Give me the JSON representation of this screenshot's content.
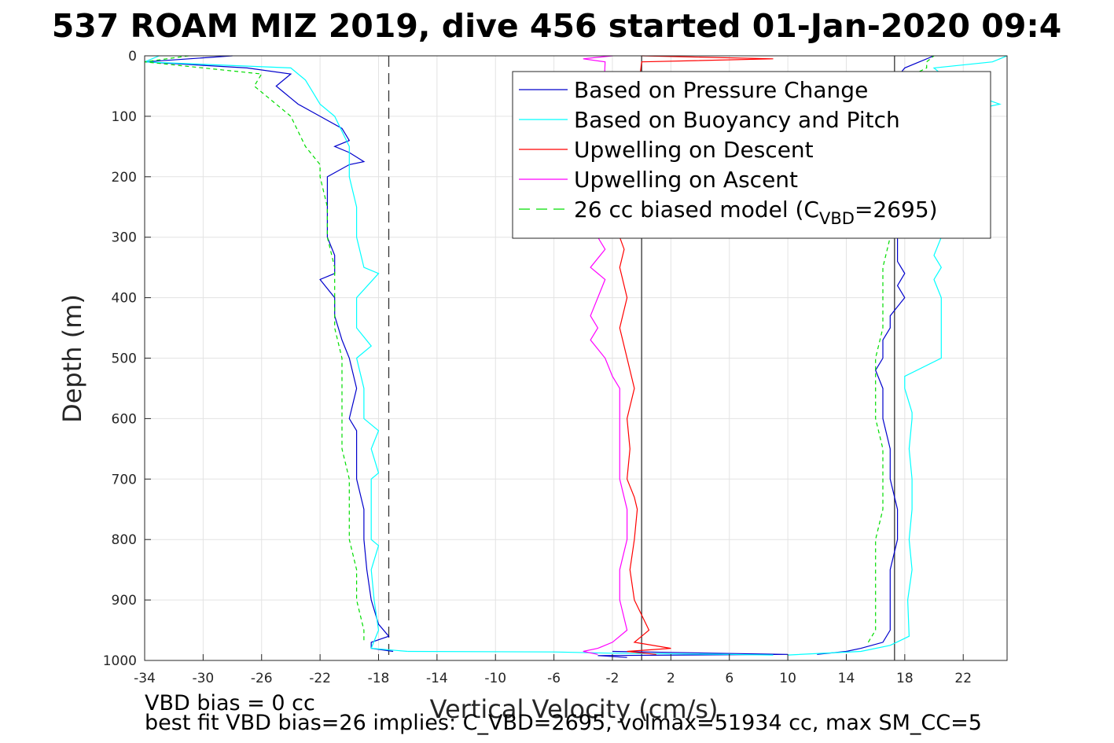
{
  "title": "537 ROAM MIZ 2019, dive 456 started 01-Jan-2020 09:4",
  "footer": {
    "line1": "VBD bias = 0 cc",
    "line2": "best fit VBD bias=26 implies: C_VBD=2695, volmax=51934 cc, max SM_CC=5"
  },
  "chart_data": {
    "type": "line",
    "title": "537 ROAM MIZ 2019, dive 456 started 01-Jan-2020 09:4",
    "xlabel": "Vertical Velocity (cm/s)",
    "ylabel": "Depth (m)",
    "xlim": [
      -34,
      25
    ],
    "ylim": [
      0,
      1000
    ],
    "y_reversed": true,
    "grid": true,
    "x_ticks": [
      "-34",
      "-30",
      "-26",
      "-22",
      "-18",
      "-14",
      "-10",
      "-6",
      "-2",
      "2",
      "6",
      "10",
      "14",
      "18",
      "22"
    ],
    "y_ticks": [
      "0",
      "100",
      "200",
      "300",
      "400",
      "500",
      "600",
      "700",
      "800",
      "900",
      "1000"
    ],
    "legend_position": "top-right",
    "legend": [
      {
        "label": "Based on Pressure Change",
        "color": "#0000cc",
        "dash": "solid"
      },
      {
        "label": "Based on Buoyancy and Pitch",
        "color": "#00ffff",
        "dash": "solid"
      },
      {
        "label": "Upwelling on Descent",
        "color": "#ff0000",
        "dash": "solid"
      },
      {
        "label": "Upwelling on Ascent",
        "color": "#ff00ff",
        "dash": "solid"
      },
      {
        "label_main": "26 cc biased model (C",
        "label_sub": "VBD",
        "label_tail": "=2695)",
        "color": "#00dd00",
        "dash": "dashed"
      }
    ],
    "reference_lines": [
      {
        "x": -17.3,
        "style": "dashed"
      },
      {
        "x": 0,
        "style": "solid"
      },
      {
        "x": 17.3,
        "style": "solid"
      }
    ],
    "series": [
      {
        "name": "Based on Pressure Change",
        "key": "pressure_descent",
        "color": "#0000cc",
        "depth": [
          0,
          10,
          20,
          30,
          50,
          60,
          70,
          80,
          100,
          120,
          140,
          150,
          160,
          175,
          180,
          200,
          250,
          300,
          330,
          360,
          370,
          400,
          430,
          470,
          500,
          550,
          600,
          620,
          650,
          700,
          750,
          800,
          850,
          900,
          940,
          960,
          970,
          980,
          985
        ],
        "velocity": [
          -28,
          -34,
          -27,
          -24,
          -25,
          -24.5,
          -24,
          -23.5,
          -22,
          -20.5,
          -20,
          -21,
          -20,
          -19,
          -20,
          -21.5,
          -21.5,
          -21.5,
          -21,
          -21,
          -22,
          -21,
          -21,
          -20.5,
          -20,
          -19.5,
          -20,
          -19.5,
          -19.5,
          -19.5,
          -19,
          -19,
          -18.8,
          -18.5,
          -18,
          -17.3,
          -18.5,
          -18.5,
          -17
        ]
      },
      {
        "name": "Based on Pressure Change",
        "key": "pressure_ascent",
        "color": "#0000cc",
        "depth": [
          985,
          988,
          990,
          992,
          995
        ],
        "velocity": [
          -2,
          5,
          10,
          -3,
          -1
        ]
      },
      {
        "name": "Based on Pressure Change",
        "key": "pressure_ascent_up",
        "color": "#0000cc",
        "depth": [
          990,
          985,
          980,
          970,
          950,
          900,
          850,
          800,
          750,
          700,
          650,
          600,
          550,
          520,
          500,
          470,
          450,
          430,
          400,
          380,
          360,
          340,
          300,
          250,
          200,
          150,
          100,
          50,
          20,
          10,
          0
        ],
        "velocity": [
          12,
          14,
          15,
          16.5,
          17,
          17,
          17,
          17.5,
          17.5,
          17,
          17,
          16.5,
          16.5,
          16,
          16.5,
          16.5,
          17,
          17,
          18,
          17.5,
          18,
          17.5,
          17.5,
          17.5,
          17.5,
          17.5,
          17.5,
          17,
          18,
          19,
          20
        ]
      },
      {
        "name": "Based on Buoyancy and Pitch",
        "key": "buoy_descent",
        "color": "#00ffff",
        "depth": [
          0,
          10,
          20,
          40,
          60,
          80,
          100,
          150,
          200,
          250,
          300,
          350,
          360,
          400,
          450,
          480,
          500,
          550,
          600,
          620,
          650,
          690,
          700,
          750,
          800,
          810,
          850,
          900,
          950,
          980,
          985
        ],
        "velocity": [
          -33,
          -34,
          -24,
          -23,
          -22.5,
          -22,
          -21,
          -20,
          -20,
          -19.5,
          -19.5,
          -19,
          -18,
          -19.5,
          -19.5,
          -18.5,
          -19.5,
          -19,
          -19,
          -18,
          -18.5,
          -18,
          -18.5,
          -18.5,
          -18.5,
          -18,
          -18.5,
          -18.3,
          -18,
          -18.5,
          -16
        ]
      },
      {
        "name": "Based on Buoyancy and Pitch",
        "key": "buoy_bottom",
        "color": "#00ffff",
        "depth": [
          985,
          986,
          988,
          990,
          991
        ],
        "velocity": [
          -16,
          -6,
          -2,
          6,
          9
        ]
      },
      {
        "name": "Based on Buoyancy and Pitch",
        "key": "buoy_ascent",
        "color": "#00ffff",
        "depth": [
          991,
          985,
          975,
          960,
          900,
          850,
          800,
          750,
          700,
          650,
          600,
          590,
          550,
          530,
          500,
          470,
          430,
          400,
          370,
          350,
          330,
          300,
          250,
          200,
          150,
          100,
          80,
          50,
          30,
          20,
          10,
          0
        ],
        "velocity": [
          10,
          15,
          17,
          18.3,
          18.2,
          18.5,
          18.3,
          18.5,
          18.5,
          18.3,
          18.5,
          18.5,
          18,
          18,
          20.5,
          20.5,
          20.5,
          20.5,
          20,
          20.5,
          20,
          20.5,
          20.5,
          20.5,
          20.5,
          20.5,
          24.5,
          21,
          20.5,
          20,
          24,
          25
        ]
      },
      {
        "name": "Upwelling on Descent",
        "key": "upwell_descent",
        "color": "#ff0000",
        "depth": [
          0,
          5,
          10,
          300,
          320,
          350,
          400,
          450,
          500,
          550,
          600,
          650,
          700,
          730,
          750,
          800,
          850,
          900,
          950,
          960,
          970,
          980,
          985,
          990
        ],
        "velocity": [
          0,
          9,
          0,
          -1.5,
          -1.2,
          -1.5,
          -1,
          -1.5,
          -1,
          -0.5,
          -1,
          -0.8,
          -1,
          -0.5,
          -0.3,
          -0.5,
          -0.8,
          -0.5,
          0.5,
          0,
          -0.5,
          2,
          -1,
          1
        ]
      },
      {
        "name": "Upwelling on Ascent",
        "key": "upwell_ascent",
        "color": "#ff00ff",
        "depth": [
          0,
          5,
          10,
          300,
          320,
          350,
          370,
          400,
          430,
          450,
          470,
          500,
          530,
          550,
          570,
          600,
          650,
          700,
          750,
          800,
          850,
          900,
          950,
          970,
          980,
          985,
          990
        ],
        "velocity": [
          -2,
          -4,
          -2.5,
          -3,
          -2.5,
          -3.5,
          -2.5,
          -3,
          -3.5,
          -3,
          -3.5,
          -2.5,
          -2,
          -1.5,
          -1.5,
          -1.5,
          -1.5,
          -1.5,
          -1,
          -1,
          -1.5,
          -1.5,
          -1,
          -2,
          -3,
          -4,
          -3
        ]
      },
      {
        "name": "26 cc biased model (CVBD=2695)",
        "key": "model_descent",
        "color": "#00dd00",
        "dash": "dashed",
        "depth": [
          0,
          10,
          30,
          50,
          70,
          100,
          150,
          180,
          200,
          250,
          300,
          350,
          400,
          450,
          500,
          550,
          600,
          650,
          700,
          750,
          800,
          850,
          900,
          950,
          970
        ],
        "velocity": [
          -31,
          -34,
          -26,
          -26.5,
          -25.5,
          -24,
          -23,
          -22,
          -22,
          -21.5,
          -21.5,
          -21,
          -21,
          -21,
          -20.5,
          -20.5,
          -20.5,
          -20.5,
          -20,
          -20,
          -20,
          -19.5,
          -19.5,
          -19,
          -19
        ]
      },
      {
        "name": "26 cc biased model (CVBD=2695)",
        "key": "model_ascent",
        "color": "#00dd00",
        "dash": "dashed",
        "depth": [
          970,
          950,
          900,
          850,
          800,
          750,
          700,
          650,
          600,
          550,
          500,
          450,
          400,
          350,
          300,
          250,
          200,
          150,
          100,
          50,
          20,
          10,
          0
        ],
        "velocity": [
          15.5,
          16,
          16,
          16,
          16,
          16.5,
          16.5,
          16.5,
          16,
          16,
          16,
          16.5,
          16.5,
          16.5,
          17,
          17,
          17,
          17,
          17,
          17,
          19.5,
          19.5,
          20
        ]
      }
    ]
  }
}
